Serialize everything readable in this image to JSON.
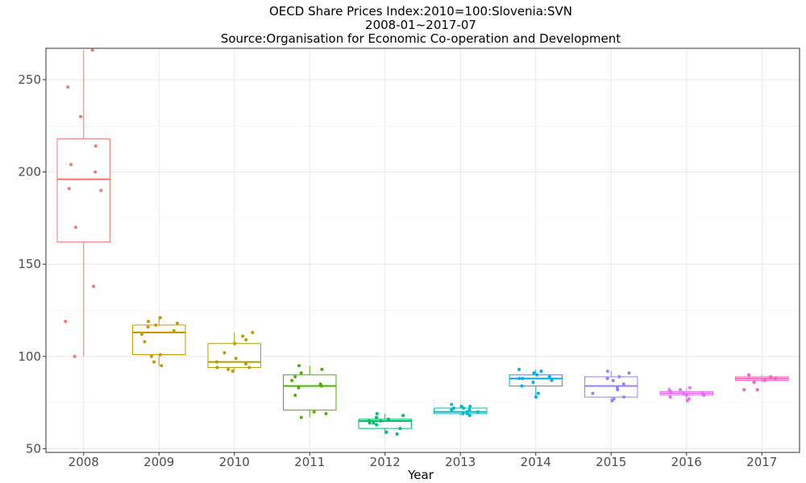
{
  "chart_data": {
    "type": "box",
    "title": [
      "OECD Share Prices Index:2010=100:Slovenia:SVN",
      "2008-01~2017-07",
      "Source:Organisation for Economic Co-operation and Development"
    ],
    "xlabel": "Year",
    "ylabel": "",
    "ylim": [
      48,
      267
    ],
    "yticks": [
      50,
      100,
      150,
      200,
      250
    ],
    "grid": true,
    "legend": "none",
    "categories": [
      "2008",
      "2009",
      "2010",
      "2011",
      "2012",
      "2013",
      "2014",
      "2015",
      "2016",
      "2017"
    ],
    "colors": [
      "#F8766D",
      "#CD9600",
      "#B1A100",
      "#49B400",
      "#00BE67",
      "#00BFC4",
      "#00A9FF",
      "#8F84FF",
      "#E66EF7",
      "#FF5FB8"
    ],
    "boxes": [
      {
        "year": "2008",
        "min": 100,
        "q1": 162,
        "median": 196,
        "q3": 218,
        "max": 266,
        "points": [
          266,
          246,
          230,
          214,
          204,
          200,
          191,
          190,
          170,
          138,
          119,
          100
        ]
      },
      {
        "year": "2009",
        "min": 95,
        "q1": 101,
        "median": 113,
        "q3": 117,
        "max": 121,
        "points": [
          95,
          97,
          100,
          101,
          108,
          112,
          114,
          116,
          117,
          118,
          119,
          121
        ]
      },
      {
        "year": "2010",
        "min": 92,
        "q1": 94,
        "median": 97,
        "q3": 107,
        "max": 113,
        "points": [
          92,
          93,
          94,
          94,
          96,
          97,
          99,
          102,
          107,
          109,
          111,
          113
        ]
      },
      {
        "year": "2011",
        "min": 67,
        "q1": 71,
        "median": 84,
        "q3": 90,
        "max": 95,
        "points": [
          67,
          69,
          70,
          79,
          83,
          84,
          85,
          87,
          89,
          91,
          93,
          95
        ]
      },
      {
        "year": "2012",
        "min": 58,
        "q1": 61,
        "median": 65,
        "q3": 66,
        "max": 69,
        "points": [
          58,
          59,
          61,
          63,
          64,
          64,
          65,
          65,
          66,
          67,
          68,
          69
        ]
      },
      {
        "year": "2013",
        "min": 68,
        "q1": 69,
        "median": 70,
        "q3": 72,
        "max": 74,
        "points": [
          68,
          69,
          69,
          70,
          70,
          71,
          71,
          72,
          72,
          73,
          73,
          74
        ]
      },
      {
        "year": "2014",
        "min": 78,
        "q1": 84,
        "median": 88,
        "q3": 90,
        "max": 93,
        "points": [
          78,
          80,
          84,
          86,
          87,
          88,
          88,
          89,
          90,
          91,
          92,
          93
        ]
      },
      {
        "year": "2015",
        "min": 76,
        "q1": 78,
        "median": 84,
        "q3": 89,
        "max": 92,
        "points": [
          76,
          77,
          78,
          80,
          82,
          83,
          85,
          87,
          88,
          89,
          91,
          92
        ]
      },
      {
        "year": "2016",
        "min": 76,
        "q1": 79,
        "median": 80,
        "q3": 81,
        "max": 83,
        "points": [
          76,
          77,
          78,
          79,
          79,
          80,
          80,
          81,
          82,
          82,
          83
        ]
      },
      {
        "year": "2017",
        "min": 86,
        "q1": 87,
        "median": 88,
        "q3": 89,
        "max": 90,
        "points": [
          82,
          82,
          86,
          87,
          88,
          89,
          90
        ]
      }
    ]
  }
}
